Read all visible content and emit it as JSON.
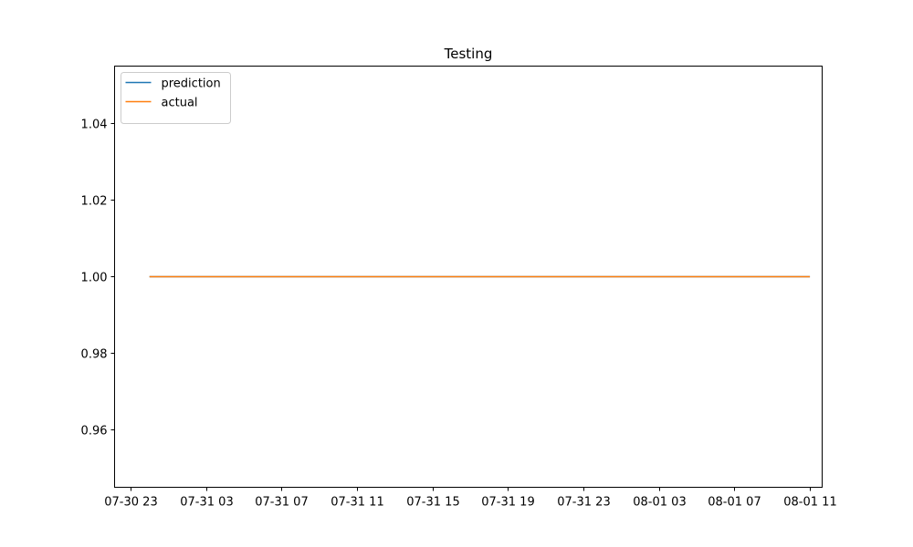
{
  "chart_data": {
    "type": "line",
    "title": "Testing",
    "xlabel": "",
    "ylabel": "",
    "x_ticks": [
      "07-30 23",
      "07-31 03",
      "07-31 07",
      "07-31 11",
      "07-31 15",
      "07-31 19",
      "07-31 23",
      "08-01 03",
      "08-01 07",
      "08-01 11"
    ],
    "y_ticks": [
      "0.96",
      "0.98",
      "1.00",
      "1.02",
      "1.04"
    ],
    "ylim": [
      0.945,
      1.055
    ],
    "xlim": [
      "07-30 22:09",
      "08-01 11:39"
    ],
    "grid": false,
    "legend_position": "upper-left",
    "series": [
      {
        "name": "prediction",
        "color": "#1f77b4",
        "x": [
          "07-31 00:00",
          "08-01 11:00"
        ],
        "y": [
          1.0,
          1.0
        ]
      },
      {
        "name": "actual",
        "color": "#ff7f0e",
        "x": [
          "07-31 00:00",
          "08-01 11:00"
        ],
        "y": [
          1.0,
          1.0
        ]
      }
    ]
  }
}
